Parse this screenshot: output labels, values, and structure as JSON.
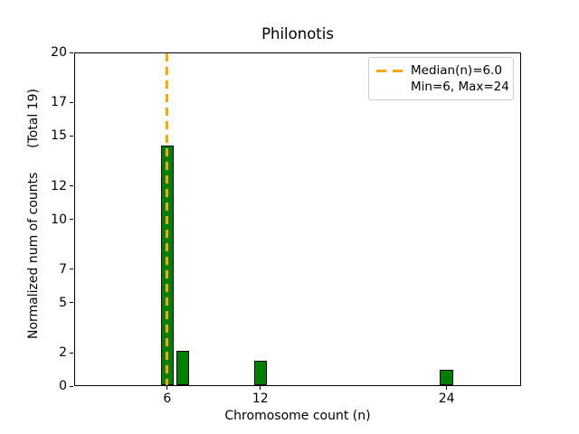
{
  "chart_data": {
    "type": "bar",
    "title": "Philonotis",
    "xlabel": "Chromosome count (n)",
    "ylabel": "Normalized num of counts      (Total 19)",
    "x": [
      6,
      7,
      12,
      24
    ],
    "values": [
      14.4,
      2.1,
      1.5,
      1.0
    ],
    "bar_width_units": 0.85,
    "xlim": [
      0,
      28.8
    ],
    "ylim": [
      0,
      20
    ],
    "xticks": [
      6,
      12,
      24
    ],
    "yticks": [
      0,
      2,
      5,
      7,
      10,
      12,
      15,
      17,
      20
    ],
    "grid": false,
    "legend_position": "upper-right",
    "median_line": {
      "x": 6.0,
      "style": "dashed"
    },
    "legend": {
      "entries": [
        {
          "handle": "orange-dashed-line",
          "label": "Median(n)=6.0"
        },
        {
          "handle": "none",
          "label": "Min=6, Max=24"
        }
      ]
    },
    "colors": {
      "bar_fill": "#008000",
      "bar_edge": "#000000",
      "median_line": "#FFA500",
      "axes": "#000000",
      "legend_border": "#cccccc",
      "background": "#ffffff"
    }
  }
}
